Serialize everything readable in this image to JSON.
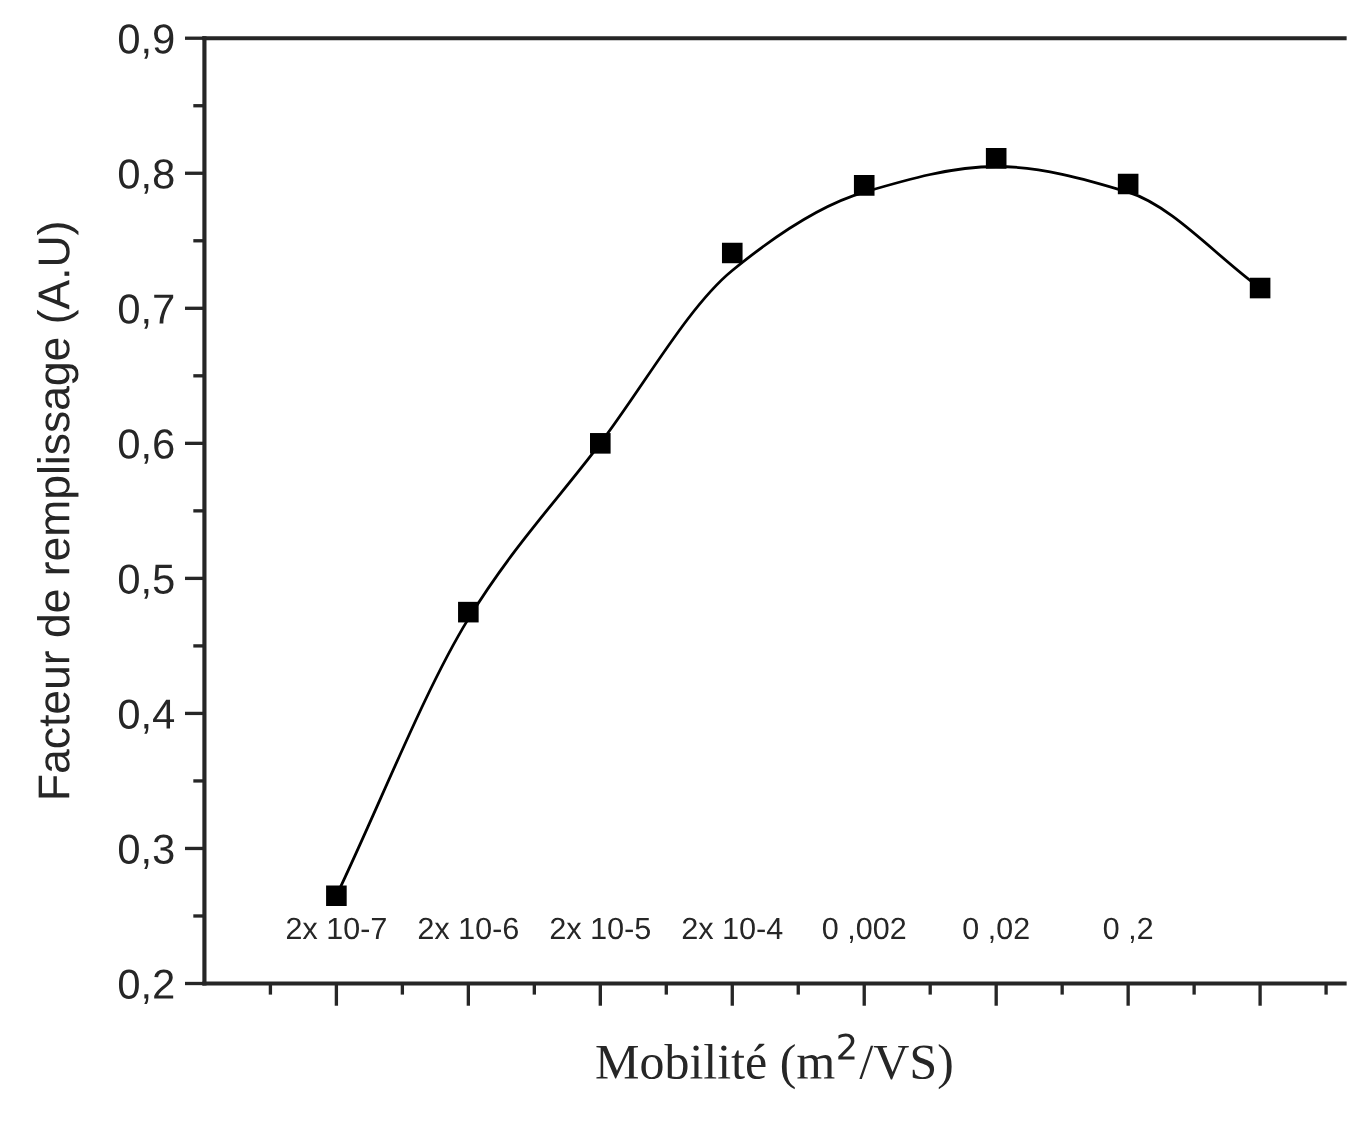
{
  "chart_data": {
    "type": "scatter",
    "xlabel": "Mobilité (m$^{2}$/VS)",
    "ylabel": "Facteur de remplissage (A.U)",
    "categories": [
      "2x 10-7",
      "2x 10-6",
      "2x 10-5",
      "2x 10-4",
      "0 ,002",
      "0 ,02",
      "0 ,2",
      null
    ],
    "ylim": [
      0.2,
      0.9
    ],
    "yticks": [
      {
        "value": 0.2,
        "label": "0,2"
      },
      {
        "value": 0.3,
        "label": "0,3"
      },
      {
        "value": 0.4,
        "label": "0,4"
      },
      {
        "value": 0.5,
        "label": "0,5"
      },
      {
        "value": 0.6,
        "label": "0,6"
      },
      {
        "value": 0.7,
        "label": "0,7"
      },
      {
        "value": 0.8,
        "label": "0,8"
      },
      {
        "value": 0.9,
        "label": "0,9"
      }
    ],
    "marker": "square",
    "grid": false,
    "legend": false,
    "series": [
      {
        "color": "#000000",
        "values": [
          0.265,
          0.475,
          0.6,
          0.741,
          0.791,
          0.811,
          0.792,
          0.715
        ]
      },
      {
        "type": "line",
        "color": "#000000",
        "line_style": "solid",
        "marker": "none",
        "values": [
          0.265,
          0.47,
          0.6,
          0.728,
          0.786,
          0.805,
          0.786,
          0.715
        ]
      }
    ]
  }
}
